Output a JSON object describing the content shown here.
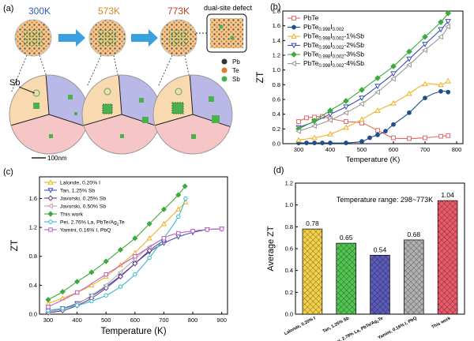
{
  "colors": {
    "temp_a": "#2e5cb8",
    "temp_b": "#d98a1a",
    "temp_c": "#c0392b",
    "arrow": "#3aa0e0",
    "grain_orange": "#f8d9b0",
    "grain_blue": "#b9b8e6",
    "grain_pink": "#f6c6c6",
    "precip": "#4caf50"
  },
  "panel_a": {
    "label": "(a)",
    "temps": [
      "300K",
      "573K",
      "773K"
    ],
    "defect_label": "dual-site defect",
    "sb_label": "Sb",
    "scale_label": "100nm",
    "legend": [
      {
        "name": "Pb",
        "color": "#333333"
      },
      {
        "name": "Te",
        "color": "#e07b2a"
      },
      {
        "name": "Sb",
        "color": "#4caf50"
      }
    ]
  },
  "chart_data": [
    {
      "id": "b",
      "label": "(b)",
      "type": "line",
      "xlabel": "Temperature (K)",
      "ylabel": "ZT",
      "xlim": [
        250,
        820
      ],
      "ylim": [
        0,
        1.8
      ],
      "xticks": [
        300,
        400,
        500,
        600,
        700,
        800
      ],
      "yticks": [
        0.0,
        0.2,
        0.4,
        0.6,
        0.8,
        1.0,
        1.2,
        1.4,
        1.6,
        1.8
      ],
      "legend_position": "top-left",
      "series": [
        {
          "name": "PbTe",
          "color": "#e06666",
          "marker": "square-open",
          "x": [
            300,
            325,
            350,
            375,
            400,
            450,
            500,
            550,
            600,
            650,
            700,
            750,
            773
          ],
          "y": [
            0.3,
            0.35,
            0.36,
            0.37,
            0.34,
            0.3,
            0.28,
            0.18,
            0.08,
            0.07,
            0.08,
            0.1,
            0.11
          ]
        },
        {
          "name": "PbTe0.998I0.002",
          "color": "#1f4e8c",
          "marker": "circle-filled",
          "x": [
            300,
            325,
            350,
            375,
            400,
            450,
            500,
            525,
            550,
            575,
            600,
            650,
            700,
            750,
            773
          ],
          "y": [
            0.01,
            0.01,
            0.01,
            0.01,
            0.01,
            0.01,
            0.03,
            0.08,
            0.12,
            0.17,
            0.26,
            0.42,
            0.62,
            0.71,
            0.7
          ]
        },
        {
          "name": "PbTe0.998I0.002-1%Sb",
          "color": "#f2b01e",
          "marker": "triangle-up-open",
          "x": [
            300,
            350,
            400,
            450,
            500,
            550,
            600,
            650,
            700,
            750,
            773
          ],
          "y": [
            0.05,
            0.08,
            0.13,
            0.22,
            0.33,
            0.45,
            0.55,
            0.68,
            0.81,
            0.8,
            0.85
          ]
        },
        {
          "name": "PbTe0.998I0.002-2%Sb",
          "color": "#3b4fb0",
          "marker": "triangle-down-open",
          "x": [
            300,
            350,
            400,
            450,
            500,
            550,
            600,
            650,
            700,
            750,
            773
          ],
          "y": [
            0.22,
            0.3,
            0.4,
            0.5,
            0.62,
            0.78,
            0.95,
            1.15,
            1.35,
            1.55,
            1.66
          ]
        },
        {
          "name": "PbTe0.998I0.002-3%Sb",
          "color": "#3caa3c",
          "marker": "diamond-filled",
          "x": [
            300,
            350,
            400,
            450,
            500,
            550,
            600,
            650,
            700,
            750,
            773
          ],
          "y": [
            0.2,
            0.31,
            0.45,
            0.58,
            0.73,
            0.89,
            1.05,
            1.25,
            1.45,
            1.65,
            1.77
          ]
        },
        {
          "name": "PbTe0.998I0.002-4%Sb",
          "color": "#999999",
          "marker": "triangle-left-open",
          "x": [
            300,
            350,
            400,
            450,
            500,
            550,
            600,
            650,
            700,
            750,
            773
          ],
          "y": [
            0.17,
            0.24,
            0.32,
            0.42,
            0.54,
            0.7,
            0.88,
            1.07,
            1.27,
            1.45,
            1.59
          ]
        }
      ]
    },
    {
      "id": "c",
      "label": "(c)",
      "type": "line",
      "xlabel": "Temperature (K)",
      "ylabel": "ZT",
      "xlim": [
        270,
        920
      ],
      "ylim": [
        0,
        1.9
      ],
      "xticks": [
        300,
        400,
        500,
        600,
        700,
        800,
        900
      ],
      "yticks": [
        0.0,
        0.4,
        0.8,
        1.2,
        1.6
      ],
      "legend_position": "top-left",
      "series": [
        {
          "name": "Lalonde, 0.20% I",
          "color": "#f2b01e",
          "marker": "triangle-up-open",
          "x": [
            300,
            350,
            400,
            450,
            500,
            550,
            600,
            650,
            700,
            750,
            775
          ],
          "y": [
            0.15,
            0.22,
            0.3,
            0.4,
            0.52,
            0.68,
            0.85,
            1.05,
            1.25,
            1.45,
            1.55
          ]
        },
        {
          "name": "Tan, 1.25% Sb",
          "color": "#3b4fb0",
          "marker": "triangle-down-open",
          "x": [
            300,
            350,
            400,
            450,
            500,
            550,
            600,
            650,
            700,
            750,
            800,
            850,
            900
          ],
          "y": [
            0.05,
            0.08,
            0.15,
            0.25,
            0.38,
            0.53,
            0.7,
            0.86,
            0.98,
            1.07,
            1.13,
            1.17,
            1.18
          ]
        },
        {
          "name": "Javorski, 0.25% Sb",
          "color": "#6a3d8f",
          "marker": "diamond-open",
          "x": [
            300,
            350,
            400,
            450,
            500,
            550,
            600,
            650,
            700
          ],
          "y": [
            0.02,
            0.05,
            0.12,
            0.22,
            0.36,
            0.52,
            0.7,
            0.88,
            1.02
          ]
        },
        {
          "name": "Javorski, 0.50% Sb",
          "color": "#aaaaaa",
          "marker": "triangle-left-open",
          "x": [
            300,
            350,
            400,
            450,
            500,
            550,
            600,
            650,
            700
          ],
          "y": [
            0.03,
            0.07,
            0.14,
            0.26,
            0.4,
            0.58,
            0.76,
            0.93,
            1.05
          ]
        },
        {
          "name": "This work",
          "color": "#3caa3c",
          "marker": "diamond-filled",
          "x": [
            300,
            350,
            400,
            450,
            500,
            550,
            600,
            650,
            700,
            750,
            773
          ],
          "y": [
            0.2,
            0.31,
            0.45,
            0.58,
            0.73,
            0.89,
            1.05,
            1.25,
            1.45,
            1.65,
            1.77
          ]
        },
        {
          "name": "Pei, 2.76% La, PbTe/Ag2Te",
          "color": "#30b8c8",
          "marker": "circle-open",
          "x": [
            300,
            350,
            400,
            450,
            500,
            550,
            600,
            650,
            700,
            750,
            775
          ],
          "y": [
            0.05,
            0.08,
            0.12,
            0.18,
            0.26,
            0.38,
            0.55,
            0.78,
            1.05,
            1.35,
            1.6
          ]
        },
        {
          "name": "Yamini, 0.16% I, PbQ",
          "color": "#c060c0",
          "marker": "square-open",
          "x": [
            300,
            400,
            500,
            600,
            700,
            750,
            800,
            850,
            900
          ],
          "y": [
            0.1,
            0.3,
            0.55,
            0.8,
            1.05,
            1.12,
            1.15,
            1.17,
            1.18
          ]
        }
      ]
    },
    {
      "id": "d",
      "label": "(d)",
      "type": "bar",
      "ylabel": "Average ZT",
      "annotation": "Temperature range: 298~773K",
      "ylim": [
        0,
        1.2
      ],
      "yticks": [
        0.0,
        0.2,
        0.4,
        0.6,
        0.8,
        1.0,
        1.2
      ],
      "categories": [
        "Lalonde, 0.20% I",
        "Tan, 1.25% Sb",
        "Pei, 2.76% La, PbTe/Ag2Te",
        "Yamini, 0.16% I, PbQ",
        "This work"
      ],
      "values": [
        0.78,
        0.65,
        0.54,
        0.68,
        1.04
      ],
      "value_labels": [
        "0.78",
        "0.65",
        "0.54",
        "0.68",
        "1.04"
      ],
      "colors": [
        "#f2d04a",
        "#52c452",
        "#5a5ab8",
        "#b0b0b0",
        "#e85a6a"
      ]
    }
  ]
}
